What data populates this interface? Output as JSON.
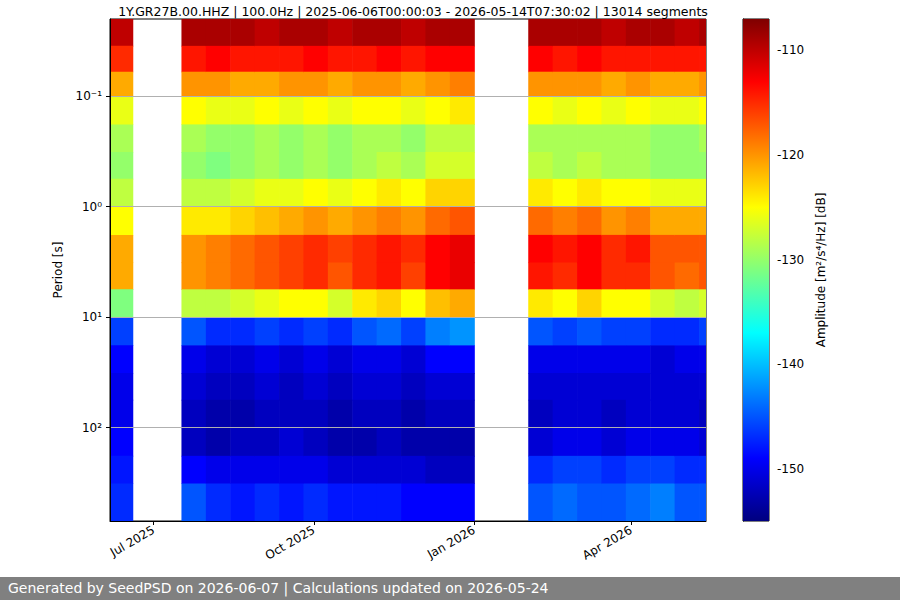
{
  "chart_data": {
    "type": "heatmap",
    "title": "1Y.GR27B.00.HHZ | 100.0Hz | 2025-06-06T00:00:03 - 2026-05-14T07:30:02 | 13014 segments",
    "y_label": "Period [s]",
    "footer": "Generated by SeedPSD on 2026-06-07 | Calculations updated on 2026-05-24",
    "log": "y",
    "grid": true,
    "xlim": [
      "2025-06-06",
      "2026-05-14"
    ],
    "xticks": [
      {
        "value": "2025-07-01",
        "label": "Jul 2025"
      },
      {
        "value": "2025-10-01",
        "label": "Oct 2025"
      },
      {
        "value": "2026-01-01",
        "label": "Jan 2026"
      },
      {
        "value": "2026-04-01",
        "label": "Apr 2026"
      }
    ],
    "ylim": [
      0.02,
      700
    ],
    "yticks": [
      {
        "value": 0.1,
        "label": "10⁻¹"
      },
      {
        "value": 1,
        "label": "10⁰"
      },
      {
        "value": 10,
        "label": "10¹"
      },
      {
        "value": 100,
        "label": "10²"
      }
    ],
    "x_bins": [
      "2025-06-06",
      "2025-06-19",
      "2025-07-17",
      "2025-07-31",
      "2025-08-14",
      "2025-08-28",
      "2025-09-11",
      "2025-09-25",
      "2025-10-09",
      "2025-10-23",
      "2025-11-06",
      "2025-11-20",
      "2025-12-04",
      "2025-12-18",
      "2026-01-01",
      "2026-02-01",
      "2026-02-15",
      "2026-03-01",
      "2026-03-15",
      "2026-03-29",
      "2026-04-12",
      "2026-04-26",
      "2026-05-10",
      "2026-05-14"
    ],
    "y_bins": [
      0.02,
      0.035,
      0.06,
      0.1,
      0.18,
      0.32,
      0.56,
      1,
      1.8,
      3.2,
      5.6,
      10,
      18,
      32,
      56,
      100,
      180,
      320,
      700
    ],
    "cells": [
      [
        -110,
        -115,
        -121,
        -126,
        -129,
        -130,
        -128,
        -125,
        -121,
        -121,
        -131,
        -146,
        -149,
        -150,
        -150,
        -149,
        -148,
        -147
      ],
      null,
      [
        -109,
        -114,
        -120,
        -125,
        -129,
        -130,
        -128,
        -124,
        -120,
        -120,
        -128,
        -145,
        -150,
        -151,
        -152,
        -152,
        -149,
        -145
      ],
      [
        -109,
        -113,
        -120,
        -126,
        -130,
        -131,
        -128,
        -124,
        -119,
        -119,
        -128,
        -147,
        -151,
        -152,
        -153,
        -153,
        -150,
        -147
      ],
      [
        -109,
        -114,
        -121,
        -126,
        -130,
        -130,
        -127,
        -123,
        -118,
        -118,
        -127,
        -147,
        -151,
        -152,
        -153,
        -152,
        -150,
        -148
      ],
      [
        -110,
        -114,
        -121,
        -125,
        -129,
        -129,
        -126,
        -122,
        -117,
        -117,
        -126,
        -146,
        -150,
        -151,
        -152,
        -152,
        -150,
        -147
      ],
      [
        -109,
        -114,
        -120,
        -126,
        -130,
        -130,
        -126,
        -121,
        -116,
        -116,
        -125,
        -147,
        -151,
        -152,
        -152,
        -151,
        -150,
        -148
      ],
      [
        -109,
        -113,
        -120,
        -125,
        -129,
        -129,
        -125,
        -120,
        -115,
        -115,
        -125,
        -146,
        -150,
        -151,
        -152,
        -152,
        -150,
        -147
      ],
      [
        -110,
        -114,
        -121,
        -126,
        -130,
        -130,
        -126,
        -121,
        -116,
        -117,
        -127,
        -147,
        -151,
        -152,
        -153,
        -153,
        -151,
        -148
      ],
      [
        -109,
        -114,
        -120,
        -125,
        -129,
        -129,
        -125,
        -120,
        -115,
        -115,
        -124,
        -145,
        -150,
        -151,
        -152,
        -153,
        -151,
        -148
      ],
      [
        -109,
        -113,
        -120,
        -125,
        -129,
        -128,
        -124,
        -119,
        -114,
        -114,
        -123,
        -144,
        -150,
        -151,
        -152,
        -152,
        -151,
        -148
      ],
      [
        -110,
        -114,
        -121,
        -126,
        -130,
        -129,
        -125,
        -120,
        -115,
        -116,
        -125,
        -146,
        -151,
        -152,
        -153,
        -153,
        -151,
        -149
      ],
      [
        -109,
        -113,
        -120,
        -125,
        -128,
        -127,
        -123,
        -118,
        -113,
        -113,
        -122,
        -143,
        -149,
        -151,
        -152,
        -153,
        -152,
        -149
      ],
      [
        -109,
        -113,
        -119,
        -124,
        -128,
        -127,
        -123,
        -117,
        -112,
        -112,
        -121,
        -142,
        -149,
        -151,
        -152,
        -153,
        -152,
        -149
      ],
      null,
      [
        -109,
        -113,
        -120,
        -125,
        -129,
        -128,
        -124,
        -118,
        -113,
        -114,
        -124,
        -145,
        -150,
        -151,
        -152,
        -151,
        -147,
        -145
      ],
      [
        -109,
        -114,
        -120,
        -126,
        -129,
        -129,
        -125,
        -119,
        -114,
        -115,
        -125,
        -146,
        -150,
        -151,
        -151,
        -150,
        -146,
        -144
      ],
      [
        -109,
        -113,
        -120,
        -125,
        -129,
        -128,
        -124,
        -118,
        -113,
        -113,
        -123,
        -145,
        -150,
        -151,
        -151,
        -150,
        -146,
        -145
      ],
      [
        -110,
        -114,
        -121,
        -126,
        -129,
        -129,
        -125,
        -120,
        -115,
        -115,
        -125,
        -146,
        -150,
        -151,
        -152,
        -151,
        -147,
        -145
      ],
      [
        -109,
        -114,
        -120,
        -125,
        -129,
        -129,
        -125,
        -119,
        -114,
        -115,
        -125,
        -146,
        -150,
        -151,
        -151,
        -150,
        -146,
        -144
      ],
      [
        -109,
        -114,
        -121,
        -126,
        -130,
        -130,
        -126,
        -121,
        -117,
        -117,
        -127,
        -147,
        -151,
        -151,
        -151,
        -150,
        -146,
        -143
      ],
      [
        -110,
        -114,
        -121,
        -126,
        -130,
        -130,
        -126,
        -121,
        -117,
        -118,
        -128,
        -147,
        -150,
        -151,
        -151,
        -150,
        -147,
        -145
      ],
      [
        -109,
        -114,
        -120,
        -125,
        -129,
        -130,
        -126,
        -121,
        -117,
        -117,
        -127,
        -146,
        -150,
        -151,
        -152,
        -151,
        -147,
        -145
      ]
    ],
    "colorbar": {
      "label": "Amplitude [m²/s⁴/Hz] [dB]",
      "zlim": [
        -155,
        -107
      ],
      "zticks": [
        -150,
        -140,
        -130,
        -120,
        -110
      ]
    }
  }
}
